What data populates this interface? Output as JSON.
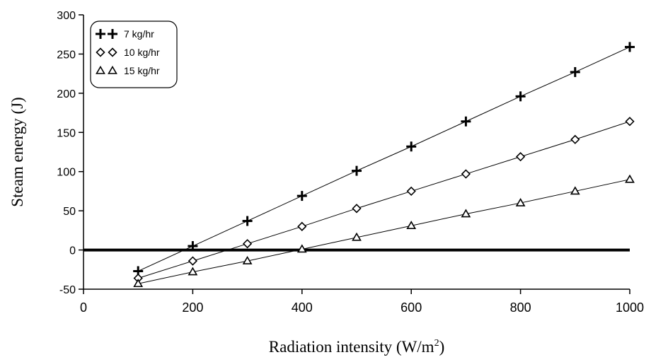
{
  "chart_data": {
    "type": "line",
    "xlabel_prefix": "Radiation intensity (W/m",
    "xlabel_sup": "2",
    "xlabel_suffix": ")",
    "ylabel": "Steam energy (J)",
    "xlim": [
      0,
      1000
    ],
    "ylim": [
      -50,
      300
    ],
    "x_ticks": [
      0,
      200,
      400,
      600,
      800,
      1000
    ],
    "y_ticks": [
      300,
      250,
      200,
      150,
      100,
      50,
      0,
      -50
    ],
    "x_tick_labels": [
      "0",
      "200",
      "400",
      "600",
      "800",
      "1000"
    ],
    "y_tick_labels": [
      "300",
      "250",
      "200",
      "150",
      "100",
      "50",
      "0",
      "-50"
    ],
    "reference_line_y": 0,
    "legend_position": "top-left",
    "series": [
      {
        "name": "7 kg/hr",
        "marker": "plus",
        "x": [
          100,
          200,
          300,
          400,
          500,
          600,
          700,
          800,
          900,
          1000
        ],
        "y": [
          -27,
          5,
          37,
          69,
          101,
          132,
          164,
          196,
          227,
          259
        ]
      },
      {
        "name": "10 kg/hr",
        "marker": "diamond",
        "x": [
          100,
          200,
          300,
          400,
          500,
          600,
          700,
          800,
          900,
          1000
        ],
        "y": [
          -36,
          -14,
          8,
          30,
          53,
          75,
          97,
          119,
          141,
          164
        ]
      },
      {
        "name": "15 kg/hr",
        "marker": "triangle",
        "x": [
          100,
          200,
          300,
          400,
          500,
          600,
          700,
          800,
          900,
          1000
        ],
        "y": [
          -43,
          -28,
          -14,
          1,
          16,
          31,
          46,
          60,
          75,
          90
        ]
      }
    ]
  }
}
